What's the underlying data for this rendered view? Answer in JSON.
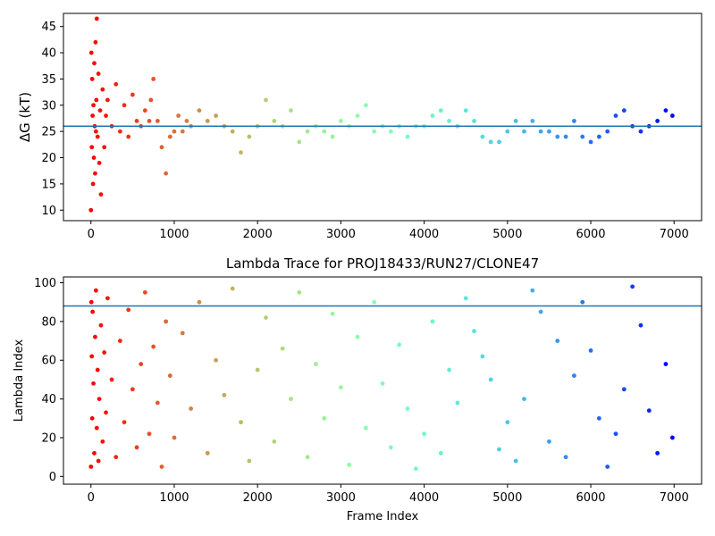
{
  "chart_data": [
    {
      "type": "scatter",
      "title": "",
      "xlabel": "",
      "ylabel": "ΔG (kT)",
      "xlim": [
        -330,
        7330
      ],
      "ylim": [
        8,
        47.5
      ],
      "xticks": [
        0,
        1000,
        2000,
        3000,
        4000,
        5000,
        6000,
        7000
      ],
      "yticks": [
        10,
        15,
        20,
        25,
        30,
        35,
        40,
        45
      ],
      "hline": 26,
      "hline_color": "#1f77b4",
      "colormap": "rainbow",
      "color_by": "frame index (red at start, violet at end)",
      "series": [
        {
          "values": [
            [
              0,
              10
            ],
            [
              5,
              40
            ],
            [
              10,
              22
            ],
            [
              15,
              35
            ],
            [
              20,
              28
            ],
            [
              25,
              15
            ],
            [
              30,
              30
            ],
            [
              35,
              20
            ],
            [
              40,
              38
            ],
            [
              45,
              26
            ],
            [
              50,
              17
            ],
            [
              55,
              42
            ],
            [
              60,
              25
            ],
            [
              65,
              31
            ],
            [
              70,
              46.5
            ],
            [
              80,
              24
            ],
            [
              90,
              36
            ],
            [
              100,
              19
            ],
            [
              110,
              29
            ],
            [
              120,
              13
            ],
            [
              140,
              33
            ],
            [
              160,
              22
            ],
            [
              180,
              28
            ],
            [
              200,
              31
            ],
            [
              250,
              26
            ],
            [
              300,
              34
            ],
            [
              350,
              25
            ],
            [
              400,
              30
            ],
            [
              450,
              24
            ],
            [
              500,
              32
            ],
            [
              550,
              27
            ],
            [
              600,
              26
            ],
            [
              650,
              29
            ],
            [
              700,
              27
            ],
            [
              720,
              31
            ],
            [
              750,
              35
            ],
            [
              800,
              27
            ],
            [
              850,
              22
            ],
            [
              900,
              17
            ],
            [
              950,
              24
            ],
            [
              1000,
              25
            ],
            [
              1050,
              28
            ],
            [
              1100,
              25
            ],
            [
              1150,
              27
            ],
            [
              1200,
              26
            ],
            [
              1300,
              29
            ],
            [
              1400,
              27
            ],
            [
              1500,
              28
            ],
            [
              1600,
              26
            ],
            [
              1700,
              25
            ],
            [
              1800,
              21
            ],
            [
              1900,
              24
            ],
            [
              2000,
              26
            ],
            [
              2100,
              31
            ],
            [
              2200,
              27
            ],
            [
              2300,
              26
            ],
            [
              2400,
              29
            ],
            [
              2500,
              23
            ],
            [
              2600,
              25
            ],
            [
              2700,
              26
            ],
            [
              2800,
              25
            ],
            [
              2900,
              24
            ],
            [
              3000,
              27
            ],
            [
              3100,
              26
            ],
            [
              3200,
              28
            ],
            [
              3300,
              30
            ],
            [
              3400,
              25
            ],
            [
              3500,
              26
            ],
            [
              3600,
              25
            ],
            [
              3700,
              26
            ],
            [
              3800,
              24
            ],
            [
              3900,
              26
            ],
            [
              4000,
              26
            ],
            [
              4100,
              28
            ],
            [
              4200,
              29
            ],
            [
              4300,
              27
            ],
            [
              4400,
              26
            ],
            [
              4500,
              29
            ],
            [
              4600,
              27
            ],
            [
              4700,
              24
            ],
            [
              4800,
              23
            ],
            [
              4900,
              23
            ],
            [
              5000,
              25
            ],
            [
              5100,
              27
            ],
            [
              5200,
              25
            ],
            [
              5300,
              27
            ],
            [
              5400,
              25
            ],
            [
              5500,
              25
            ],
            [
              5600,
              24
            ],
            [
              5700,
              24
            ],
            [
              5800,
              27
            ],
            [
              5900,
              24
            ],
            [
              6000,
              23
            ],
            [
              6100,
              24
            ],
            [
              6200,
              25
            ],
            [
              6300,
              28
            ],
            [
              6400,
              29
            ],
            [
              6500,
              26
            ],
            [
              6600,
              25
            ],
            [
              6700,
              26
            ],
            [
              6800,
              27
            ],
            [
              6900,
              29
            ],
            [
              6980,
              28
            ]
          ]
        }
      ]
    },
    {
      "type": "scatter",
      "title": "Lambda Trace for PROJ18433/RUN27/CLONE47",
      "xlabel": "Frame Index",
      "ylabel": "Lambda Index",
      "xlim": [
        -330,
        7330
      ],
      "ylim": [
        -4,
        103
      ],
      "xticks": [
        0,
        1000,
        2000,
        3000,
        4000,
        5000,
        6000,
        7000
      ],
      "yticks": [
        0,
        20,
        40,
        60,
        80,
        100
      ],
      "hline": 88,
      "hline_color": "#1f77b4",
      "colormap": "rainbow",
      "color_by": "frame index (red at start, violet at end)",
      "series": [
        {
          "values": [
            [
              0,
              5
            ],
            [
              5,
              90
            ],
            [
              10,
              62
            ],
            [
              15,
              30
            ],
            [
              20,
              85
            ],
            [
              30,
              48
            ],
            [
              40,
              12
            ],
            [
              50,
              72
            ],
            [
              60,
              96
            ],
            [
              70,
              25
            ],
            [
              80,
              55
            ],
            [
              90,
              8
            ],
            [
              100,
              40
            ],
            [
              120,
              78
            ],
            [
              140,
              18
            ],
            [
              160,
              64
            ],
            [
              180,
              33
            ],
            [
              200,
              92
            ],
            [
              250,
              50
            ],
            [
              300,
              10
            ],
            [
              350,
              70
            ],
            [
              400,
              28
            ],
            [
              450,
              86
            ],
            [
              500,
              45
            ],
            [
              550,
              15
            ],
            [
              600,
              58
            ],
            [
              650,
              95
            ],
            [
              700,
              22
            ],
            [
              750,
              67
            ],
            [
              800,
              38
            ],
            [
              850,
              5
            ],
            [
              900,
              80
            ],
            [
              950,
              52
            ],
            [
              1000,
              20
            ],
            [
              1100,
              74
            ],
            [
              1200,
              35
            ],
            [
              1300,
              90
            ],
            [
              1400,
              12
            ],
            [
              1500,
              60
            ],
            [
              1600,
              42
            ],
            [
              1700,
              97
            ],
            [
              1800,
              28
            ],
            [
              1900,
              8
            ],
            [
              2000,
              55
            ],
            [
              2100,
              82
            ],
            [
              2200,
              18
            ],
            [
              2300,
              66
            ],
            [
              2400,
              40
            ],
            [
              2500,
              95
            ],
            [
              2600,
              10
            ],
            [
              2700,
              58
            ],
            [
              2800,
              30
            ],
            [
              2900,
              84
            ],
            [
              3000,
              46
            ],
            [
              3100,
              6
            ],
            [
              3200,
              72
            ],
            [
              3300,
              25
            ],
            [
              3400,
              90
            ],
            [
              3500,
              48
            ],
            [
              3600,
              15
            ],
            [
              3700,
              68
            ],
            [
              3800,
              35
            ],
            [
              3900,
              4
            ],
            [
              4000,
              22
            ],
            [
              4100,
              80
            ],
            [
              4200,
              12
            ],
            [
              4300,
              55
            ],
            [
              4400,
              38
            ],
            [
              4500,
              92
            ],
            [
              4600,
              75
            ],
            [
              4700,
              62
            ],
            [
              4800,
              50
            ],
            [
              4900,
              14
            ],
            [
              5000,
              28
            ],
            [
              5100,
              8
            ],
            [
              5200,
              40
            ],
            [
              5300,
              96
            ],
            [
              5400,
              85
            ],
            [
              5500,
              18
            ],
            [
              5600,
              70
            ],
            [
              5700,
              10
            ],
            [
              5800,
              52
            ],
            [
              5900,
              90
            ],
            [
              6000,
              65
            ],
            [
              6100,
              30
            ],
            [
              6200,
              5
            ],
            [
              6300,
              22
            ],
            [
              6400,
              45
            ],
            [
              6500,
              98
            ],
            [
              6600,
              78
            ],
            [
              6700,
              34
            ],
            [
              6800,
              12
            ],
            [
              6900,
              58
            ],
            [
              6980,
              20
            ]
          ]
        }
      ]
    }
  ]
}
